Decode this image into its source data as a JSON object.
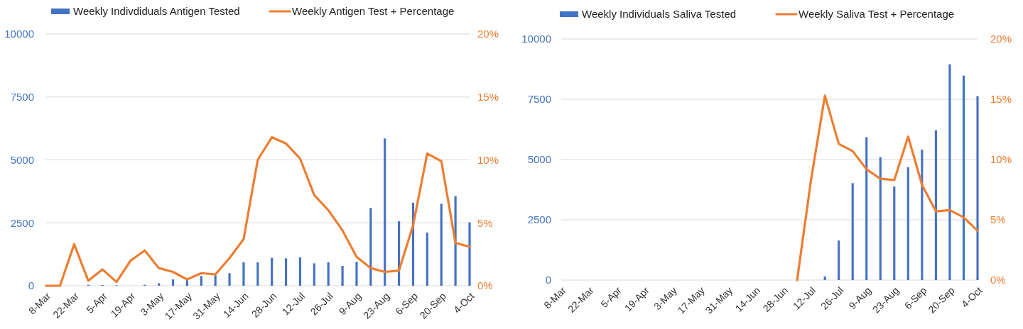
{
  "chart_data": [
    {
      "type": "bar",
      "categories": [
        "8-Mar",
        null,
        "22-Mar",
        null,
        "5-Apr",
        null,
        "19-Apr",
        null,
        "3-May",
        null,
        "17-May",
        null,
        "31-May",
        null,
        "14-Jun",
        null,
        "28-Jun",
        null,
        "12-Jul",
        null,
        "26-Jul",
        null,
        "9-Aug",
        null,
        "23-Aug",
        null,
        "6-Sep",
        null,
        "20-Sep",
        null,
        "4-Oct"
      ],
      "series": [
        {
          "name": "Weekly Indivdiduals Antigen Tested",
          "color": "#4472c4",
          "values": [
            null,
            null,
            null,
            40,
            30,
            20,
            null,
            40,
            100,
            250,
            280,
            390,
            420,
            500,
            930,
            930,
            1110,
            1090,
            1130,
            890,
            930,
            790,
            950,
            3090,
            5850,
            2560,
            3300,
            2110,
            3260,
            3560,
            2520
          ]
        },
        {
          "name": "Weekly Antigen Test + Percentage",
          "type": "line",
          "axis": "y2",
          "color": "#ed7d31",
          "values": [
            0,
            0,
            3.3,
            0.4,
            1.3,
            0.3,
            2.0,
            2.8,
            1.4,
            1.1,
            0.5,
            1.0,
            0.9,
            2.2,
            3.7,
            10.0,
            11.8,
            11.3,
            10.1,
            7.2,
            6.0,
            4.4,
            2.3,
            1.4,
            1.1,
            1.2,
            4.8,
            10.5,
            9.9,
            3.4,
            3.1
          ]
        }
      ],
      "ylim": [
        0,
        10000
      ],
      "yticks": [
        0,
        2500,
        5000,
        7500,
        10000
      ],
      "y2lim": [
        0,
        20
      ],
      "y2ticks": [
        {
          "value": 0,
          "label": "0%"
        },
        {
          "value": 5,
          "label": "5%"
        },
        {
          "value": 10,
          "label": "10%"
        },
        {
          "value": 15,
          "label": "15%"
        },
        {
          "value": 20,
          "label": "20%"
        }
      ],
      "grid": "y",
      "legend": "top"
    },
    {
      "type": "bar",
      "categories": [
        "8-Mar",
        null,
        "22-Mar",
        null,
        "5-Apr",
        null,
        "19-Apr",
        null,
        "3-May",
        null,
        "17-May",
        null,
        "31-May",
        null,
        "14-Jun",
        null,
        "28-Jun",
        null,
        "12-Jul",
        null,
        "26-Jul",
        null,
        "9-Aug",
        null,
        "23-Aug",
        null,
        "6-Sep",
        null,
        "20-Sep",
        null,
        "4-Oct"
      ],
      "series": [
        {
          "name": "Weekly Individuals Saliva Tested",
          "color": "#4472c4",
          "values": [
            null,
            null,
            null,
            null,
            null,
            null,
            null,
            null,
            null,
            null,
            null,
            null,
            null,
            null,
            null,
            null,
            null,
            null,
            null,
            150,
            1640,
            4020,
            5930,
            5100,
            3880,
            4680,
            5410,
            6210,
            8950,
            8480,
            7630
          ]
        },
        {
          "name": "Weekly Saliva Test + Percentage",
          "type": "line",
          "axis": "y2",
          "color": "#ed7d31",
          "values": [
            null,
            null,
            null,
            null,
            null,
            null,
            null,
            null,
            null,
            null,
            null,
            null,
            null,
            null,
            null,
            null,
            null,
            0,
            8.3,
            15.3,
            11.3,
            10.7,
            9.2,
            8.4,
            8.3,
            11.9,
            7.9,
            5.7,
            5.8,
            5.2,
            4.1
          ]
        }
      ],
      "ylim": [
        0,
        10000
      ],
      "yticks": [
        0,
        2500,
        5000,
        7500,
        10000
      ],
      "y2lim": [
        0,
        20
      ],
      "y2ticks": [
        {
          "value": 0,
          "label": "0%"
        },
        {
          "value": 5,
          "label": "5%"
        },
        {
          "value": 10,
          "label": "10%"
        },
        {
          "value": 15,
          "label": "15%"
        },
        {
          "value": 20,
          "label": "20%"
        }
      ],
      "grid": "y",
      "legend": "top"
    }
  ]
}
